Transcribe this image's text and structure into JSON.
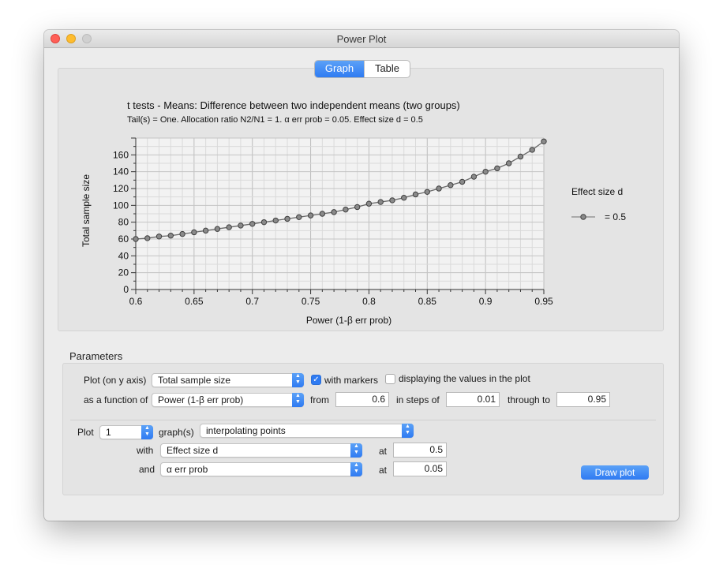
{
  "window": {
    "title": "Power Plot"
  },
  "tabs": {
    "graph": "Graph",
    "table": "Table",
    "selected": "Graph"
  },
  "chart_data": {
    "type": "line",
    "title": "t tests - Means: Difference between two independent means (two groups)",
    "subtitle": "Tail(s) = One. Allocation ratio N2/N1 = 1. α err prob = 0.05. Effect size d = 0.5",
    "xlabel": "Power (1-β err prob)",
    "ylabel": "Total sample size",
    "xlim": [
      0.6,
      0.95
    ],
    "ylim": [
      0,
      180
    ],
    "x_ticks": [
      0.6,
      0.65,
      0.7,
      0.75,
      0.8,
      0.85,
      0.9,
      0.95
    ],
    "x_tick_labels": [
      "0.6",
      "0.65",
      "0.7",
      "0.75",
      "0.8",
      "0.85",
      "0.9",
      "0.95"
    ],
    "y_ticks": [
      0,
      20,
      40,
      60,
      80,
      100,
      120,
      140,
      160
    ],
    "y_tick_labels": [
      "0",
      "20",
      "40",
      "60",
      "80",
      "100",
      "120",
      "140",
      "160"
    ],
    "grid": true,
    "legend_title": "Effect size d",
    "legend_placement": "right",
    "series": [
      {
        "name": "= 0.5",
        "markers": true,
        "x": [
          0.6,
          0.61,
          0.62,
          0.63,
          0.64,
          0.65,
          0.66,
          0.67,
          0.68,
          0.69,
          0.7,
          0.71,
          0.72,
          0.73,
          0.74,
          0.75,
          0.76,
          0.77,
          0.78,
          0.79,
          0.8,
          0.81,
          0.82,
          0.83,
          0.84,
          0.85,
          0.86,
          0.87,
          0.88,
          0.89,
          0.9,
          0.91,
          0.92,
          0.93,
          0.94,
          0.95
        ],
        "y": [
          60,
          61,
          63,
          64,
          66,
          68,
          70,
          72,
          74,
          76,
          78,
          80,
          82,
          84,
          86,
          88,
          90,
          92,
          95,
          98,
          102,
          104,
          106,
          109,
          113,
          116,
          120,
          124,
          128,
          134,
          140,
          144,
          150,
          158,
          166,
          176
        ]
      }
    ]
  },
  "parameters": {
    "section_label": "Parameters",
    "plot_label": "Plot (on y axis)",
    "plot_y_value": "Total sample size",
    "with_markers_label": "with markers",
    "with_markers_checked": true,
    "display_values_label": "displaying the values in the plot",
    "display_values_checked": false,
    "function_label": "as a function of",
    "function_value": "Power (1-β err prob)",
    "from_label": "from",
    "from_value": "0.6",
    "steps_label": "in steps of",
    "steps_value": "0.01",
    "through_label": "through to",
    "through_value": "0.95",
    "plot_count_label": "Plot",
    "plot_count_value": "1",
    "graphs_label": "graph(s)",
    "graphs_mode": "interpolating points",
    "with_label": "with",
    "with_value": "Effect size d",
    "with_at_label": "at",
    "with_at_value": "0.5",
    "and_label": "and",
    "and_value": "α err prob",
    "and_at_label": "at",
    "and_at_value": "0.05",
    "draw_button": "Draw plot"
  }
}
